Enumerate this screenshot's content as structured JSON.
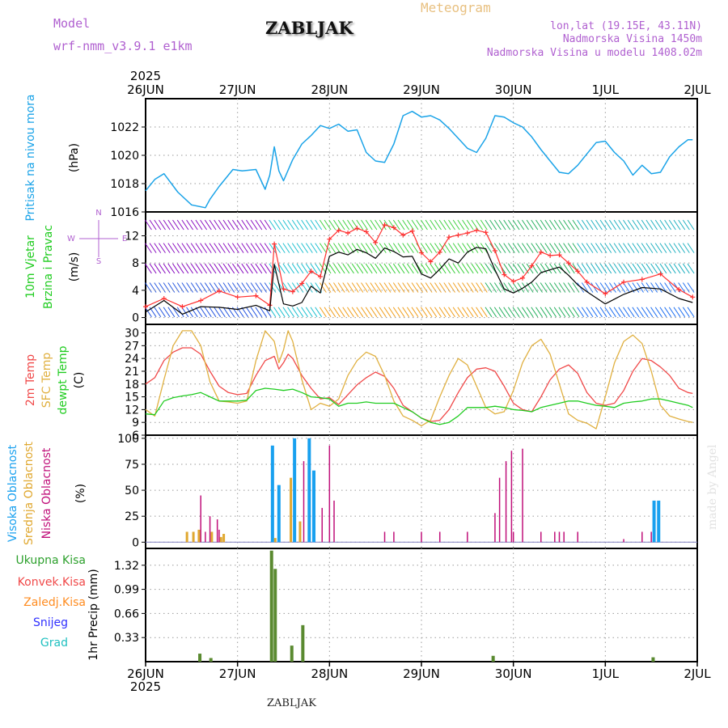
{
  "header": {
    "model_label": "Model",
    "model_name": "wrf-nmm_v3.9.1 e1km",
    "station": "ZABLJAK",
    "title": "Meteogram",
    "coords": "lon,lat (19.15E, 43.11N)",
    "elevation": "Nadmorska Visina 1450m",
    "model_elevation": "Nadmorska Visina u modelu 1408.02m"
  },
  "footer": {
    "station": "ZABLJAK",
    "credit": "made by Angel"
  },
  "colors": {
    "pressure": "#1aa3e8",
    "temp2m": "#f04848",
    "sfc_temp": "#e0b040",
    "dewpt": "#20cc20",
    "low_cloud": "#c0107a",
    "mid_cloud": "#e0a830",
    "high_cloud": "#18a0ef",
    "precip_total": "#2ca02c",
    "precip_conv": "#f04848",
    "precip_strat": "#ff8c20",
    "snow": "#3030ff",
    "hail": "#20c0c0",
    "wind_speed": "#000000",
    "gust": "#ff3030"
  },
  "chart_data": [
    {
      "type": "line",
      "panel": "pressure",
      "year_label": "2025",
      "x_ticks": [
        "26JUN",
        "27JUN",
        "28JUN",
        "29JUN",
        "30JUN",
        "1JUL",
        "2JUL"
      ],
      "ylabel_lines": [
        "Pritisak na nivou mora",
        "(hPa)"
      ],
      "ylim": [
        1016,
        1024
      ],
      "y_ticks": [
        "1016",
        "1018",
        "1020",
        "1022"
      ],
      "grid": true,
      "series": [
        {
          "x": [
            0,
            0.1,
            0.2,
            0.35,
            0.5,
            0.65,
            0.7,
            0.8,
            0.95,
            1.05,
            1.2,
            1.3,
            1.35,
            1.4,
            1.45,
            1.5,
            1.6,
            1.7,
            1.8,
            1.9,
            2.0,
            2.1,
            2.2,
            2.3,
            2.4,
            2.5,
            2.6,
            2.7,
            2.8,
            2.9,
            3.0,
            3.1,
            3.2,
            3.3,
            3.4,
            3.5,
            3.6,
            3.7,
            3.8,
            3.9,
            4.0,
            4.1,
            4.2,
            4.3,
            4.4,
            4.5,
            4.6,
            4.7,
            4.8,
            4.9,
            5.0,
            5.1,
            5.2,
            5.3,
            5.4,
            5.5,
            5.6,
            5.7,
            5.8,
            5.9,
            5.95
          ],
          "values": [
            1017.5,
            1018.3,
            1018.7,
            1017.4,
            1016.5,
            1016.3,
            1016.9,
            1017.8,
            1019.0,
            1018.9,
            1019.0,
            1017.6,
            1018.6,
            1020.6,
            1018.9,
            1018.2,
            1019.7,
            1020.8,
            1021.4,
            1022.1,
            1021.9,
            1022.2,
            1021.7,
            1021.8,
            1020.2,
            1019.6,
            1019.5,
            1020.8,
            1022.8,
            1023.1,
            1022.7,
            1022.8,
            1022.5,
            1021.9,
            1021.2,
            1020.5,
            1020.2,
            1021.2,
            1022.8,
            1022.7,
            1022.3,
            1022.0,
            1021.3,
            1020.4,
            1019.6,
            1018.8,
            1018.7,
            1019.3,
            1020.1,
            1020.9,
            1021.0,
            1020.2,
            1019.6,
            1018.6,
            1019.3,
            1018.7,
            1018.8,
            1019.9,
            1020.6,
            1021.1,
            1021.1
          ]
        }
      ]
    },
    {
      "type": "line",
      "panel": "wind",
      "ylabel_lines": [
        "10m Vjetar",
        "Brzina i Pravac",
        "(m/s)"
      ],
      "compass_labels": [
        "N",
        "W",
        "E",
        "S"
      ],
      "ylim": [
        -1,
        15.5
      ],
      "y_ticks": [
        "0",
        "4",
        "8",
        "12"
      ],
      "grid": true,
      "series": [
        {
          "name": "speed",
          "x": [
            0,
            0.2,
            0.4,
            0.6,
            0.8,
            1.0,
            1.2,
            1.35,
            1.4,
            1.5,
            1.6,
            1.7,
            1.8,
            1.9,
            2.0,
            2.1,
            2.2,
            2.3,
            2.4,
            2.5,
            2.6,
            2.7,
            2.8,
            2.9,
            3.0,
            3.1,
            3.2,
            3.3,
            3.4,
            3.5,
            3.6,
            3.7,
            3.8,
            3.9,
            4.0,
            4.1,
            4.2,
            4.3,
            4.4,
            4.5,
            4.6,
            4.7,
            4.8,
            5.0,
            5.2,
            5.4,
            5.6,
            5.8,
            5.95
          ],
          "values": [
            0.8,
            2.5,
            0.5,
            1.6,
            1.5,
            1.2,
            1.8,
            1.0,
            7.8,
            2.0,
            1.7,
            2.2,
            4.6,
            3.6,
            9.0,
            9.6,
            9.2,
            10.0,
            9.5,
            8.7,
            10.2,
            9.7,
            8.9,
            9.0,
            6.4,
            5.8,
            7.1,
            8.6,
            8.0,
            9.6,
            10.3,
            10.1,
            7.0,
            4.2,
            3.6,
            4.3,
            5.2,
            6.6,
            7.0,
            7.4,
            6.2,
            4.8,
            3.8,
            2.0,
            3.4,
            4.4,
            4.2,
            2.8,
            2.2
          ]
        },
        {
          "name": "gust",
          "x": [
            0,
            0.2,
            0.4,
            0.6,
            0.8,
            1.0,
            1.2,
            1.35,
            1.4,
            1.5,
            1.6,
            1.7,
            1.8,
            1.9,
            2.0,
            2.1,
            2.2,
            2.3,
            2.4,
            2.5,
            2.6,
            2.7,
            2.8,
            2.9,
            3.0,
            3.1,
            3.2,
            3.3,
            3.4,
            3.5,
            3.6,
            3.7,
            3.8,
            3.9,
            4.0,
            4.1,
            4.2,
            4.3,
            4.4,
            4.5,
            4.6,
            4.7,
            4.8,
            5.0,
            5.2,
            5.4,
            5.6,
            5.8,
            5.95
          ],
          "values": [
            1.6,
            2.8,
            1.6,
            2.5,
            3.9,
            3.0,
            3.2,
            1.8,
            10.8,
            4.2,
            3.8,
            5.0,
            6.8,
            6.0,
            11.5,
            12.8,
            12.4,
            13.1,
            12.6,
            11.0,
            13.6,
            13.2,
            12.1,
            12.7,
            9.5,
            8.2,
            9.6,
            11.8,
            12.1,
            12.4,
            12.8,
            12.5,
            9.8,
            6.3,
            5.3,
            5.8,
            7.6,
            9.6,
            9.1,
            9.2,
            8.0,
            6.8,
            5.2,
            3.5,
            5.2,
            5.6,
            6.4,
            4.1,
            3.0
          ]
        }
      ]
    },
    {
      "type": "line",
      "panel": "temperature",
      "ylabel_lines": [
        "2m Temp",
        "SFC Temp",
        "dewpt Temp",
        "(C)"
      ],
      "ylim": [
        6,
        32
      ],
      "y_ticks": [
        "6",
        "9",
        "12",
        "15",
        "18",
        "21",
        "24",
        "27",
        "30"
      ],
      "grid": true,
      "series": [
        {
          "name": "2m Temp",
          "x": [
            0,
            0.1,
            0.2,
            0.3,
            0.4,
            0.5,
            0.6,
            0.7,
            0.8,
            0.9,
            1.0,
            1.1,
            1.2,
            1.3,
            1.4,
            1.45,
            1.5,
            1.55,
            1.6,
            1.7,
            1.8,
            1.9,
            2.0,
            2.1,
            2.2,
            2.3,
            2.4,
            2.5,
            2.6,
            2.7,
            2.8,
            2.9,
            3.0,
            3.1,
            3.2,
            3.3,
            3.4,
            3.5,
            3.6,
            3.7,
            3.8,
            3.9,
            4.0,
            4.1,
            4.2,
            4.3,
            4.4,
            4.5,
            4.6,
            4.7,
            4.8,
            4.9,
            5.0,
            5.1,
            5.2,
            5.3,
            5.4,
            5.5,
            5.6,
            5.7,
            5.8,
            5.9,
            5.95
          ],
          "values": [
            18.0,
            19.5,
            23.5,
            25.5,
            26.5,
            26.5,
            25.0,
            21.0,
            17.5,
            16.0,
            15.5,
            15.8,
            20.0,
            23.5,
            24.5,
            21.5,
            23.0,
            25.0,
            24.0,
            20.0,
            17.0,
            14.5,
            14.8,
            13.2,
            15.5,
            17.8,
            19.5,
            20.8,
            19.8,
            17.0,
            13.0,
            11.5,
            10.0,
            9.2,
            9.5,
            12.0,
            16.0,
            19.5,
            21.5,
            21.8,
            21.0,
            17.5,
            13.5,
            12.0,
            11.5,
            15.0,
            19.0,
            21.5,
            22.5,
            20.5,
            16.0,
            13.5,
            13.0,
            13.5,
            16.5,
            21.0,
            24.0,
            23.5,
            22.0,
            20.0,
            17.0,
            16.0,
            15.8
          ]
        },
        {
          "name": "SFC Temp",
          "x": [
            0,
            0.1,
            0.2,
            0.3,
            0.4,
            0.5,
            0.6,
            0.7,
            0.8,
            0.9,
            1.0,
            1.1,
            1.2,
            1.3,
            1.4,
            1.45,
            1.5,
            1.55,
            1.6,
            1.7,
            1.8,
            1.9,
            2.0,
            2.1,
            2.2,
            2.3,
            2.4,
            2.5,
            2.6,
            2.7,
            2.8,
            2.9,
            3.0,
            3.1,
            3.2,
            3.3,
            3.4,
            3.5,
            3.6,
            3.7,
            3.8,
            3.9,
            4.0,
            4.1,
            4.2,
            4.3,
            4.4,
            4.5,
            4.6,
            4.7,
            4.8,
            4.9,
            5.0,
            5.1,
            5.2,
            5.3,
            5.4,
            5.5,
            5.6,
            5.7,
            5.8,
            5.9,
            5.95
          ],
          "values": [
            12.0,
            10.5,
            19.0,
            27.0,
            30.5,
            30.5,
            27.0,
            18.5,
            14.0,
            13.8,
            13.5,
            14.0,
            23.5,
            30.5,
            28.0,
            23.0,
            26.0,
            30.5,
            28.0,
            19.0,
            12.0,
            13.5,
            12.8,
            14.5,
            20.0,
            23.5,
            25.5,
            24.5,
            20.0,
            14.0,
            10.5,
            9.5,
            8.2,
            9.5,
            15.0,
            20.0,
            24.0,
            22.5,
            17.5,
            12.5,
            11.0,
            11.5,
            16.5,
            23.0,
            27.0,
            28.5,
            25.0,
            18.0,
            11.0,
            9.5,
            8.8,
            7.5,
            15.0,
            23.0,
            28.0,
            29.5,
            27.5,
            21.0,
            13.0,
            10.5,
            9.8,
            9.2,
            9.0
          ]
        },
        {
          "name": "dewpt Temp",
          "x": [
            0,
            0.1,
            0.2,
            0.3,
            0.4,
            0.5,
            0.6,
            0.7,
            0.8,
            0.9,
            1.0,
            1.1,
            1.2,
            1.3,
            1.4,
            1.5,
            1.6,
            1.7,
            1.8,
            1.9,
            2.0,
            2.1,
            2.2,
            2.3,
            2.4,
            2.5,
            2.6,
            2.7,
            2.8,
            2.9,
            3.0,
            3.1,
            3.2,
            3.3,
            3.4,
            3.5,
            3.6,
            3.7,
            3.8,
            3.9,
            4.0,
            4.1,
            4.2,
            4.3,
            4.4,
            4.5,
            4.6,
            4.7,
            4.8,
            4.9,
            5.0,
            5.1,
            5.2,
            5.3,
            5.4,
            5.5,
            5.6,
            5.7,
            5.8,
            5.9,
            5.95
          ],
          "values": [
            11.0,
            10.8,
            14.0,
            14.8,
            15.2,
            15.5,
            16.0,
            15.0,
            14.0,
            14.0,
            14.0,
            14.2,
            16.5,
            17.0,
            16.8,
            16.5,
            16.8,
            16.0,
            15.0,
            14.8,
            14.5,
            12.8,
            13.5,
            13.5,
            13.8,
            13.5,
            13.5,
            13.5,
            12.5,
            11.5,
            10.0,
            9.0,
            8.5,
            9.0,
            10.5,
            12.5,
            12.5,
            12.5,
            12.8,
            12.5,
            12.0,
            11.8,
            11.5,
            12.5,
            13.0,
            13.5,
            14.0,
            14.0,
            13.5,
            13.0,
            12.8,
            12.5,
            13.5,
            13.8,
            14.0,
            14.5,
            14.5,
            14.0,
            13.5,
            13.0,
            12.5
          ]
        }
      ]
    },
    {
      "type": "bar",
      "panel": "cloud",
      "ylabel_lines": [
        "Visoka Oblacnost",
        "Srednja Oblacnost",
        "Niska Oblacnost",
        "(%)"
      ],
      "ylim": [
        -6,
        103
      ],
      "y_ticks": [
        "0",
        "25",
        "50",
        "75",
        "100"
      ],
      "grid": true,
      "series": [
        {
          "name": "Visoka Oblacnost",
          "x": [
            1.38,
            1.45,
            1.62,
            1.78,
            1.83,
            5.53,
            5.58
          ],
          "values": [
            93,
            55,
            100,
            100,
            69,
            40,
            40
          ]
        },
        {
          "name": "Srednja Oblacnost",
          "x": [
            0.45,
            0.52,
            0.58,
            0.72,
            0.82,
            0.85,
            1.41,
            1.58,
            1.68
          ],
          "values": [
            10,
            10,
            12,
            10,
            5,
            8,
            4,
            62,
            20
          ]
        },
        {
          "name": "Niska Oblacnost",
          "x": [
            0.6,
            0.65,
            0.7,
            0.78,
            0.8,
            1.72,
            1.92,
            2.0,
            2.05,
            2.6,
            2.7,
            3.0,
            3.2,
            3.5,
            3.8,
            3.85,
            3.92,
            3.98,
            4.0,
            4.1,
            4.3,
            4.45,
            4.5,
            4.55,
            4.7,
            5.2,
            5.4,
            5.5
          ],
          "values": [
            45,
            10,
            25,
            22,
            12,
            78,
            33,
            93,
            40,
            10,
            10,
            10,
            10,
            10,
            28,
            62,
            78,
            88,
            10,
            90,
            10,
            10,
            10,
            10,
            10,
            3,
            10,
            10
          ]
        }
      ]
    },
    {
      "type": "bar",
      "panel": "precip",
      "legend": [
        "Ukupna Kisa",
        "Konvek.Kisa",
        "Zaledj.Kisa",
        "Snijeg",
        "Grad"
      ],
      "ylabel_lines": [
        "1hr Precip (mm)"
      ],
      "ylim": [
        0,
        1.55
      ],
      "y_ticks": [
        "0.33",
        "0.66",
        "0.99",
        "1.32"
      ],
      "grid": true,
      "bottom_year": "2025",
      "series": [
        {
          "name": "Ukupna Kisa",
          "x": [
            0.59,
            0.71,
            1.37,
            1.41,
            1.59,
            1.71,
            3.78,
            5.52
          ],
          "values": [
            0.11,
            0.05,
            1.52,
            1.27,
            0.22,
            0.5,
            0.08,
            0.06
          ]
        }
      ]
    }
  ]
}
